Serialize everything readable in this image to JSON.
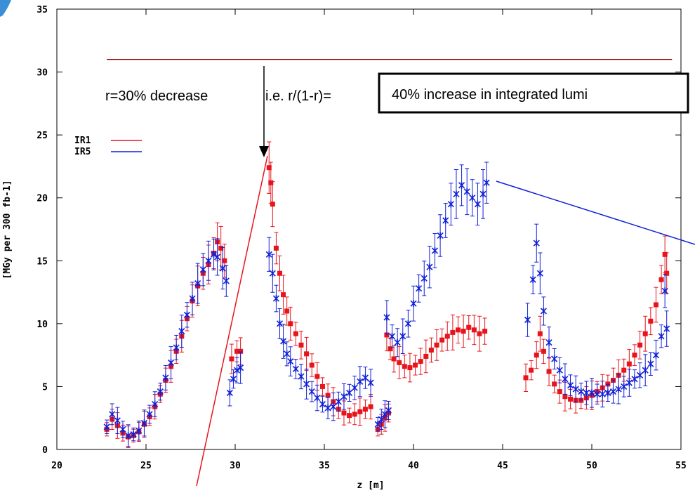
{
  "chart_data": {
    "type": "scatter",
    "title": "",
    "xlabel": "z [m]",
    "ylabel": "[MGy per 300 fb-1]",
    "xlim": [
      20,
      55
    ],
    "ylim": [
      0,
      35
    ],
    "x_ticks": [
      "20",
      "25",
      "30",
      "35",
      "40",
      "45",
      "50",
      "55"
    ],
    "y_ticks": [
      "0",
      "5",
      "10",
      "15",
      "20",
      "25",
      "30",
      "35"
    ],
    "grid": false,
    "legend_position": "top-left",
    "series": [
      {
        "name": "IR1",
        "color": "#e8141c",
        "error_bars": true,
        "points": [
          [
            22.8,
            1.6
          ],
          [
            23.1,
            2.4
          ],
          [
            23.4,
            1.9
          ],
          [
            23.7,
            1.3
          ],
          [
            24.0,
            1.0
          ],
          [
            24.3,
            1.1
          ],
          [
            24.6,
            1.4
          ],
          [
            24.9,
            2.0
          ],
          [
            25.2,
            2.6
          ],
          [
            25.5,
            3.4
          ],
          [
            25.8,
            4.4
          ],
          [
            26.1,
            5.5
          ],
          [
            26.4,
            6.6
          ],
          [
            26.7,
            7.8
          ],
          [
            27.0,
            9.0
          ],
          [
            27.3,
            10.4
          ],
          [
            27.6,
            11.8
          ],
          [
            27.9,
            13.0
          ],
          [
            28.2,
            14.0
          ],
          [
            28.5,
            14.7
          ],
          [
            28.8,
            15.6
          ],
          [
            29.0,
            16.5
          ],
          [
            29.2,
            16.0
          ],
          [
            29.4,
            15.0
          ],
          [
            29.8,
            7.2
          ],
          [
            30.1,
            7.8
          ],
          [
            30.3,
            7.8
          ],
          [
            31.9,
            22.4
          ],
          [
            32.0,
            21.2
          ],
          [
            32.1,
            19.5
          ],
          [
            32.3,
            16.0
          ],
          [
            32.5,
            14.0
          ],
          [
            32.7,
            12.3
          ],
          [
            32.9,
            11.0
          ],
          [
            33.1,
            10.0
          ],
          [
            33.4,
            9.2
          ],
          [
            33.7,
            8.3
          ],
          [
            34.0,
            7.6
          ],
          [
            34.3,
            6.7
          ],
          [
            34.6,
            5.8
          ],
          [
            34.9,
            5.0
          ],
          [
            35.2,
            4.3
          ],
          [
            35.5,
            3.8
          ],
          [
            35.8,
            3.2
          ],
          [
            36.1,
            2.9
          ],
          [
            36.4,
            2.7
          ],
          [
            36.7,
            2.8
          ],
          [
            37.0,
            3.0
          ],
          [
            37.3,
            3.2
          ],
          [
            37.6,
            3.4
          ],
          [
            38.0,
            1.6
          ],
          [
            38.2,
            2.0
          ],
          [
            38.4,
            2.5
          ],
          [
            38.6,
            2.9
          ],
          [
            38.5,
            9.1
          ],
          [
            38.7,
            8.0
          ],
          [
            38.9,
            7.2
          ],
          [
            39.2,
            6.9
          ],
          [
            39.5,
            6.6
          ],
          [
            39.8,
            6.5
          ],
          [
            40.1,
            6.7
          ],
          [
            40.4,
            7.0
          ],
          [
            40.7,
            7.4
          ],
          [
            41.0,
            7.9
          ],
          [
            41.3,
            8.3
          ],
          [
            41.6,
            8.7
          ],
          [
            41.9,
            9.0
          ],
          [
            42.2,
            9.3
          ],
          [
            42.5,
            9.5
          ],
          [
            42.8,
            9.4
          ],
          [
            43.1,
            9.7
          ],
          [
            43.4,
            9.5
          ],
          [
            43.7,
            9.2
          ],
          [
            44.0,
            9.4
          ],
          [
            46.3,
            5.7
          ],
          [
            46.6,
            6.3
          ],
          [
            46.9,
            7.5
          ],
          [
            47.1,
            9.2
          ],
          [
            47.3,
            7.8
          ],
          [
            47.6,
            6.2
          ],
          [
            47.9,
            5.2
          ],
          [
            48.2,
            4.6
          ],
          [
            48.5,
            4.2
          ],
          [
            48.8,
            4.0
          ],
          [
            49.1,
            3.9
          ],
          [
            49.4,
            3.9
          ],
          [
            49.7,
            4.1
          ],
          [
            50.0,
            4.3
          ],
          [
            50.3,
            4.6
          ],
          [
            50.6,
            4.9
          ],
          [
            50.9,
            5.2
          ],
          [
            51.2,
            5.5
          ],
          [
            51.5,
            5.9
          ],
          [
            51.8,
            6.3
          ],
          [
            52.1,
            6.8
          ],
          [
            52.4,
            7.5
          ],
          [
            52.7,
            8.3
          ],
          [
            53.0,
            9.2
          ],
          [
            53.3,
            10.2
          ],
          [
            53.6,
            11.5
          ],
          [
            53.9,
            13.5
          ],
          [
            54.1,
            15.5
          ],
          [
            54.2,
            14.0
          ]
        ]
      },
      {
        "name": "IR5",
        "color": "#1020d8",
        "error_bars": true,
        "points": [
          [
            22.8,
            1.8
          ],
          [
            23.1,
            2.8
          ],
          [
            23.4,
            2.3
          ],
          [
            23.7,
            1.6
          ],
          [
            24.0,
            1.1
          ],
          [
            24.3,
            1.2
          ],
          [
            24.6,
            1.5
          ],
          [
            24.9,
            2.1
          ],
          [
            25.2,
            2.8
          ],
          [
            25.5,
            3.6
          ],
          [
            25.8,
            4.6
          ],
          [
            26.1,
            5.7
          ],
          [
            26.4,
            6.9
          ],
          [
            26.7,
            8.1
          ],
          [
            27.0,
            9.4
          ],
          [
            27.3,
            10.7
          ],
          [
            27.6,
            12.0
          ],
          [
            27.9,
            13.2
          ],
          [
            28.2,
            14.3
          ],
          [
            28.5,
            15.0
          ],
          [
            28.8,
            15.5
          ],
          [
            29.0,
            15.3
          ],
          [
            29.3,
            14.4
          ],
          [
            29.5,
            13.4
          ],
          [
            29.7,
            4.5
          ],
          [
            29.9,
            5.6
          ],
          [
            30.1,
            6.3
          ],
          [
            30.3,
            6.5
          ],
          [
            31.9,
            15.5
          ],
          [
            32.1,
            14.0
          ],
          [
            32.3,
            12.0
          ],
          [
            32.5,
            10.0
          ],
          [
            32.7,
            8.6
          ],
          [
            32.9,
            7.6
          ],
          [
            33.1,
            7.0
          ],
          [
            33.4,
            6.4
          ],
          [
            33.7,
            5.8
          ],
          [
            34.0,
            5.2
          ],
          [
            34.3,
            4.6
          ],
          [
            34.6,
            4.1
          ],
          [
            34.9,
            3.6
          ],
          [
            35.2,
            3.3
          ],
          [
            35.5,
            3.4
          ],
          [
            35.8,
            3.8
          ],
          [
            36.1,
            4.2
          ],
          [
            36.4,
            4.5
          ],
          [
            36.7,
            4.9
          ],
          [
            37.0,
            5.4
          ],
          [
            37.3,
            5.7
          ],
          [
            37.6,
            5.3
          ],
          [
            38.0,
            2.0
          ],
          [
            38.2,
            2.4
          ],
          [
            38.4,
            2.8
          ],
          [
            38.6,
            3.1
          ],
          [
            38.5,
            10.5
          ],
          [
            38.8,
            9.0
          ],
          [
            39.1,
            8.5
          ],
          [
            39.4,
            9.0
          ],
          [
            39.7,
            10.0
          ],
          [
            40.0,
            11.6
          ],
          [
            40.3,
            12.8
          ],
          [
            40.6,
            13.6
          ],
          [
            40.9,
            14.5
          ],
          [
            41.2,
            15.8
          ],
          [
            41.5,
            17.0
          ],
          [
            41.8,
            18.2
          ],
          [
            42.1,
            19.5
          ],
          [
            42.4,
            20.3
          ],
          [
            42.7,
            21.0
          ],
          [
            43.0,
            20.5
          ],
          [
            43.3,
            20.0
          ],
          [
            43.6,
            19.5
          ],
          [
            43.9,
            20.3
          ],
          [
            44.1,
            21.2
          ],
          [
            46.4,
            10.3
          ],
          [
            46.7,
            13.5
          ],
          [
            46.9,
            16.4
          ],
          [
            47.1,
            14.0
          ],
          [
            47.3,
            11.0
          ],
          [
            47.6,
            8.5
          ],
          [
            47.9,
            7.2
          ],
          [
            48.2,
            6.3
          ],
          [
            48.5,
            5.6
          ],
          [
            48.8,
            5.1
          ],
          [
            49.1,
            4.8
          ],
          [
            49.4,
            4.6
          ],
          [
            49.7,
            4.5
          ],
          [
            50.0,
            4.5
          ],
          [
            50.3,
            4.4
          ],
          [
            50.6,
            4.4
          ],
          [
            50.9,
            4.5
          ],
          [
            51.2,
            4.6
          ],
          [
            51.5,
            4.8
          ],
          [
            51.8,
            5.0
          ],
          [
            52.1,
            5.3
          ],
          [
            52.4,
            5.6
          ],
          [
            52.7,
            5.9
          ],
          [
            53.0,
            6.3
          ],
          [
            53.3,
            6.8
          ],
          [
            53.6,
            7.5
          ],
          [
            53.9,
            9.0
          ],
          [
            54.1,
            12.6
          ],
          [
            54.2,
            9.6
          ]
        ]
      }
    ],
    "reference_line": {
      "y": 31,
      "x_range": [
        22.8,
        54.5
      ],
      "color": "#8b0000"
    },
    "annotations": {
      "text_left": "r=30% decrease",
      "text_mid": "i.e. r/(1-r)=",
      "boxed_text": "40% increase in integrated lumi"
    }
  }
}
